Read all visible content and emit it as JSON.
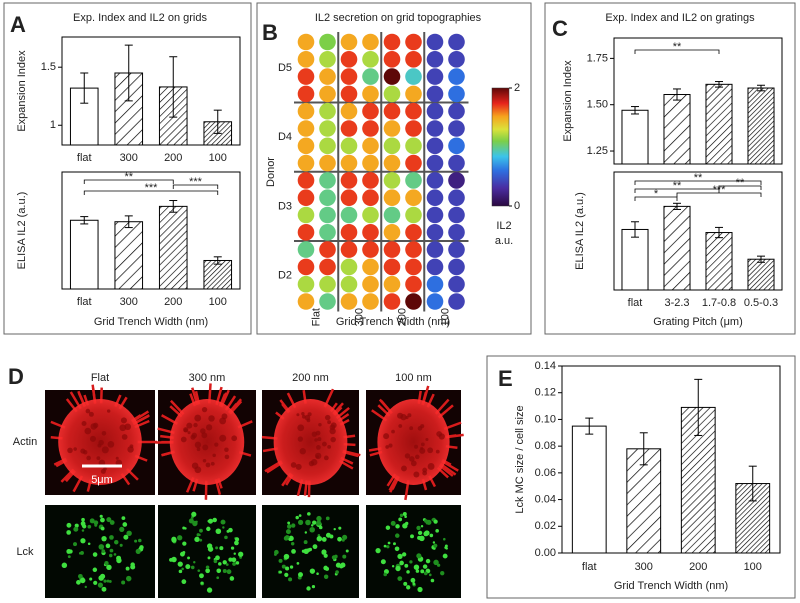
{
  "panel_letters": [
    "A",
    "B",
    "C",
    "D",
    "E"
  ],
  "panel_d": {
    "columns": [
      "Flat",
      "300 nm",
      "200 nm",
      "100 nm"
    ],
    "rows": [
      "Actin",
      "Lck"
    ],
    "scale_bar": "5μm"
  },
  "chart_data": [
    {
      "type": "bar",
      "title": "Exp. Index and IL2 on grids",
      "y_label": "Expansion Index",
      "categories": [
        "flat",
        "300",
        "200",
        "100"
      ],
      "values": [
        1.32,
        1.45,
        1.33,
        1.03
      ],
      "errors": [
        0.13,
        0.24,
        0.26,
        0.1
      ],
      "ylim": [
        0.83,
        1.76
      ],
      "yticks": [
        1,
        1.5
      ]
    },
    {
      "type": "bar",
      "y_label": "ELISA IL2 (a.u.)",
      "x_label": "Grid Trench Width (nm)",
      "categories": [
        "flat",
        "300",
        "200",
        "100"
      ],
      "values": [
        0.94,
        0.92,
        1.13,
        0.39
      ],
      "errors": [
        0.05,
        0.08,
        0.08,
        0.05
      ],
      "ylim": [
        0,
        1.6
      ],
      "annotations": [
        "**",
        "***",
        "***"
      ]
    },
    {
      "type": "dot_matrix",
      "title": "IL2 secretion on grid topographies",
      "y_label": "Donor",
      "x_label": "Grid Trench Width (nm)",
      "row_labels": [
        "D5",
        "D4",
        "D3",
        "D2"
      ],
      "column_labels": [
        "Flat",
        "300",
        "200",
        "100"
      ],
      "clim": [
        0,
        2
      ],
      "colorbar_ticks": [
        0,
        2
      ],
      "colorbar_label": [
        "IL2",
        "a.u."
      ],
      "values": [
        [
          1.5,
          1.1,
          1.5,
          1.5,
          1.7,
          1.7,
          0.4,
          0.4
        ],
        [
          1.5,
          1.2,
          1.7,
          1.2,
          1.7,
          1.7,
          0.4,
          0.4
        ],
        [
          1.7,
          1.5,
          1.7,
          1.0,
          2.0,
          0.9,
          0.4,
          0.6
        ],
        [
          1.7,
          1.5,
          1.7,
          1.5,
          1.2,
          1.5,
          0.4,
          0.6
        ],
        [
          1.5,
          1.2,
          1.5,
          1.7,
          1.7,
          1.7,
          0.4,
          0.4
        ],
        [
          1.5,
          1.2,
          1.7,
          1.7,
          1.5,
          1.7,
          0.4,
          0.4
        ],
        [
          1.5,
          1.2,
          1.2,
          1.5,
          1.2,
          1.2,
          0.4,
          0.6
        ],
        [
          1.5,
          1.5,
          1.5,
          1.5,
          1.5,
          1.7,
          0.4,
          0.4
        ],
        [
          1.7,
          1.0,
          1.7,
          1.7,
          1.2,
          1.0,
          0.4,
          0.2
        ],
        [
          1.7,
          1.0,
          1.7,
          1.7,
          1.5,
          1.5,
          0.4,
          0.4
        ],
        [
          1.2,
          1.0,
          1.0,
          1.2,
          1.0,
          1.2,
          0.4,
          0.4
        ],
        [
          1.7,
          1.0,
          1.7,
          1.7,
          1.5,
          1.7,
          0.4,
          0.4
        ],
        [
          1.0,
          1.7,
          1.7,
          1.7,
          1.7,
          1.7,
          0.4,
          0.4
        ],
        [
          1.7,
          1.7,
          1.2,
          1.5,
          1.7,
          1.7,
          0.4,
          0.4
        ],
        [
          1.2,
          1.2,
          1.2,
          1.5,
          1.5,
          1.7,
          0.6,
          0.4
        ],
        [
          1.5,
          1.0,
          1.5,
          1.5,
          1.7,
          2.0,
          0.6,
          0.4
        ]
      ]
    },
    {
      "type": "bar",
      "title": "Exp. Index and IL2 on gratings",
      "y_label": "Expansion Index",
      "values": [
        1.47,
        1.555,
        1.61,
        1.59
      ],
      "errors": [
        0.02,
        0.03,
        0.015,
        0.015
      ],
      "ylim": [
        1.18,
        1.86
      ],
      "yticks": [
        1.25,
        {
          "value": 1.5,
          "label": "1.50"
        },
        1.75
      ],
      "annotations": [
        "**"
      ]
    },
    {
      "type": "bar",
      "y_label": "ELISA IL2 (a.u.)",
      "x_label": "Grating Pitch (μm)",
      "categories": [
        "flat",
        "3-2.3",
        "1.7-0.8",
        "0.5-0.3"
      ],
      "values": [
        1.18,
        1.63,
        1.12,
        0.6
      ],
      "errors": [
        0.15,
        0.06,
        0.1,
        0.06
      ],
      "ylim": [
        0,
        2.3
      ],
      "annotations": [
        "*",
        "**",
        "**",
        "***",
        "**"
      ]
    },
    {
      "type": "bar",
      "y_label": "Lck MC size / cell size",
      "x_label": "Grid Trench Width (nm)",
      "categories": [
        "flat",
        "300",
        "200",
        "100"
      ],
      "values": [
        0.095,
        0.078,
        0.109,
        0.052
      ],
      "errors": [
        0.006,
        0.012,
        0.021,
        0.013
      ],
      "ylim": [
        0,
        0.14
      ],
      "yticks": [
        {
          "value": 0,
          "label": "0.00"
        },
        0.02,
        0.04,
        0.06,
        0.08,
        {
          "value": 0.1,
          "label": "0.10"
        },
        0.12,
        0.14
      ]
    }
  ]
}
